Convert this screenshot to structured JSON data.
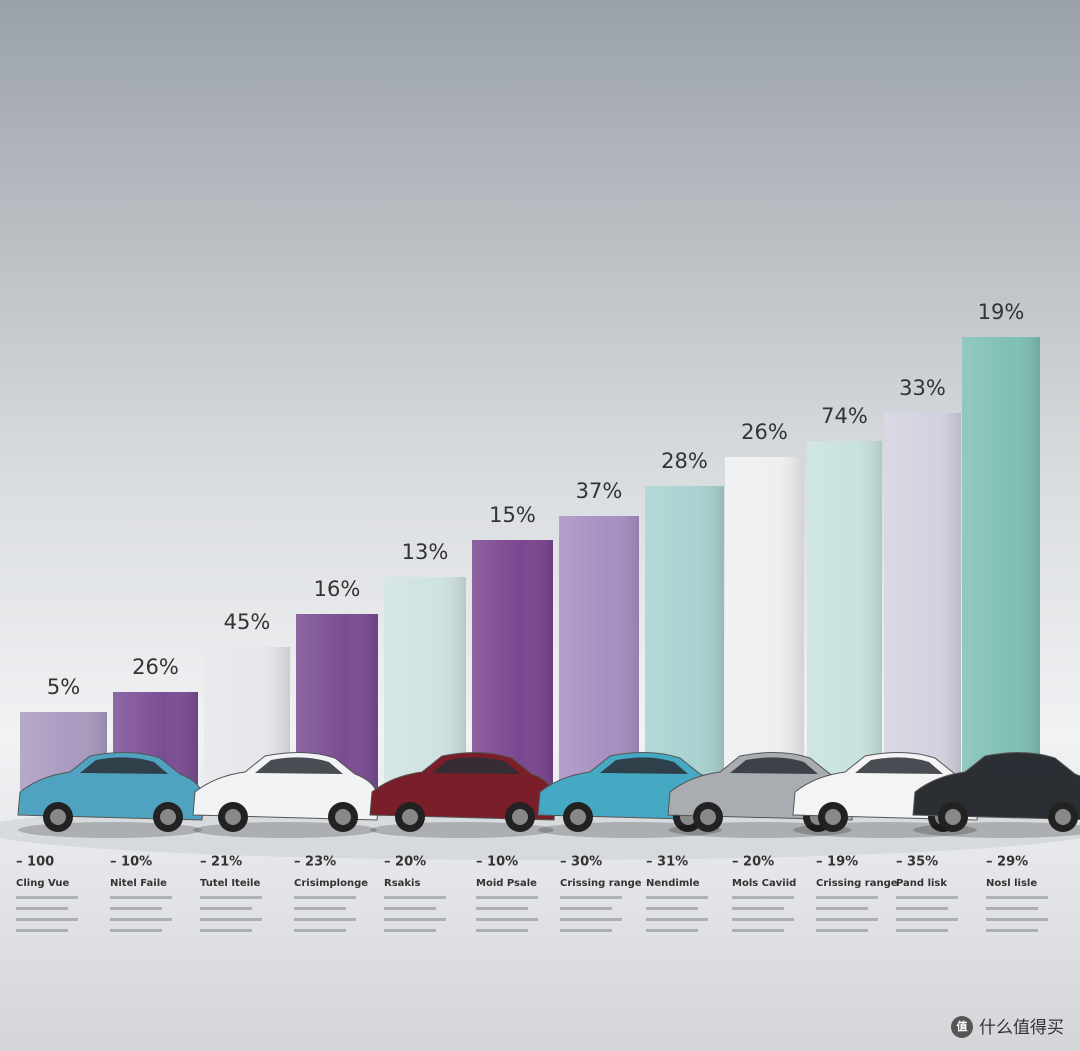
{
  "columns": [
    {
      "top_label": "5%",
      "value": "– 100",
      "title": "Cling Vue"
    },
    {
      "top_label": "26%",
      "value": "– 10%",
      "title": "Nitel Faile"
    },
    {
      "top_label": "45%",
      "value": "– 21%",
      "title": "Tutel Iteile"
    },
    {
      "top_label": "16%",
      "value": "– 23%",
      "title": "Crisimplonge"
    },
    {
      "top_label": "13%",
      "value": "– 20%",
      "title": "Rsakis"
    },
    {
      "top_label": "15%",
      "value": "– 10%",
      "title": "Moid Psale"
    },
    {
      "top_label": "37%",
      "value": "– 30%",
      "title": "Crissing range"
    },
    {
      "top_label": "28%",
      "value": "– 31%",
      "title": "Nendimle"
    },
    {
      "top_label": "26%",
      "value": "– 20%",
      "title": "Mols Caviid"
    },
    {
      "top_label": "74%",
      "value": "– 19%",
      "title": "Crissing range"
    },
    {
      "top_label": "33%",
      "value": "– 35%",
      "title": "Pand lisk"
    },
    {
      "top_label": "19%",
      "value": "– 29%",
      "title": "Nosl lisle"
    }
  ],
  "watermark": "什么值得买"
}
